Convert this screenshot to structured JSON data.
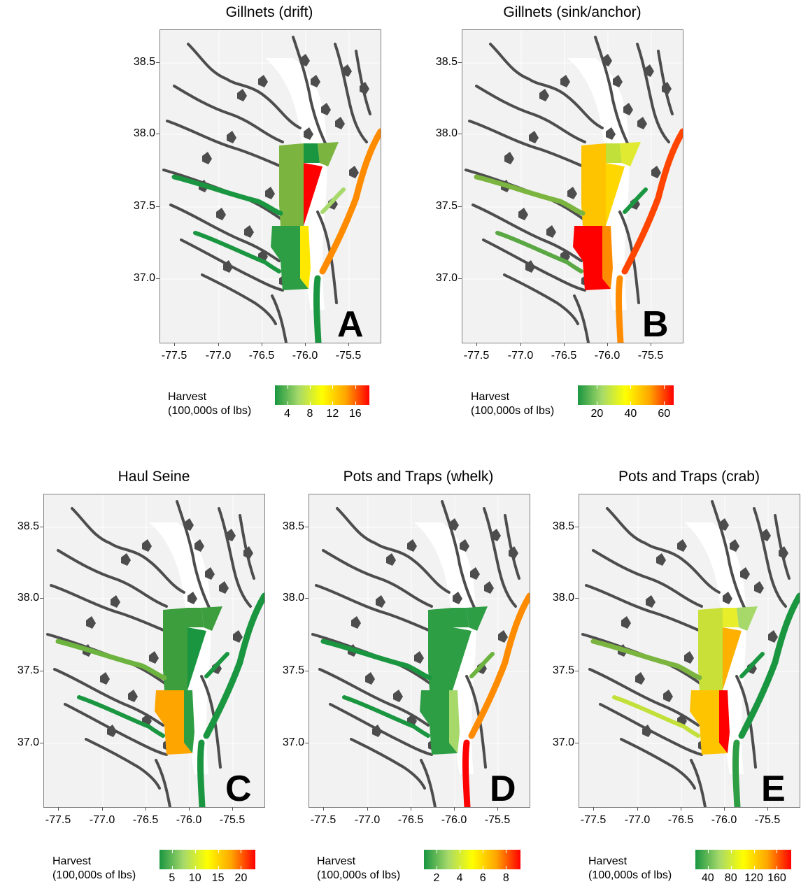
{
  "figure": {
    "x_ticks": [
      "-77.5",
      "-77.0",
      "-76.5",
      "-76.0",
      "-75.5"
    ],
    "y_ticks": [
      "38.5",
      "38.0",
      "37.5",
      "37.0"
    ],
    "legend_title_line1": "Harvest",
    "legend_title_line2": "(100,000s of lbs)",
    "colors": {
      "background": "#f2f2f2",
      "land_outline": "#4d4d4d",
      "scale_low": "#1a9641",
      "scale_mid_low": "#a6d96a",
      "scale_mid": "#ffff00",
      "scale_mid_high": "#ffa500",
      "scale_high": "#ff0000"
    }
  },
  "panels": [
    {
      "title": "Gillnets (drift)",
      "letter": "A",
      "legend_ticks": [
        "4",
        "8",
        "12",
        "16"
      ]
    },
    {
      "title": "Gillnets (sink/anchor)",
      "letter": "B",
      "legend_ticks": [
        "20",
        "40",
        "60"
      ]
    },
    {
      "title": "Haul Seine",
      "letter": "C",
      "legend_ticks": [
        "5",
        "10",
        "15",
        "20"
      ]
    },
    {
      "title": "Pots and Traps (whelk)",
      "letter": "D",
      "legend_ticks": [
        "2",
        "4",
        "6",
        "8"
      ]
    },
    {
      "title": "Pots and Traps (crab)",
      "letter": "E",
      "legend_ticks": [
        "40",
        "80",
        "120",
        "160"
      ]
    }
  ]
}
